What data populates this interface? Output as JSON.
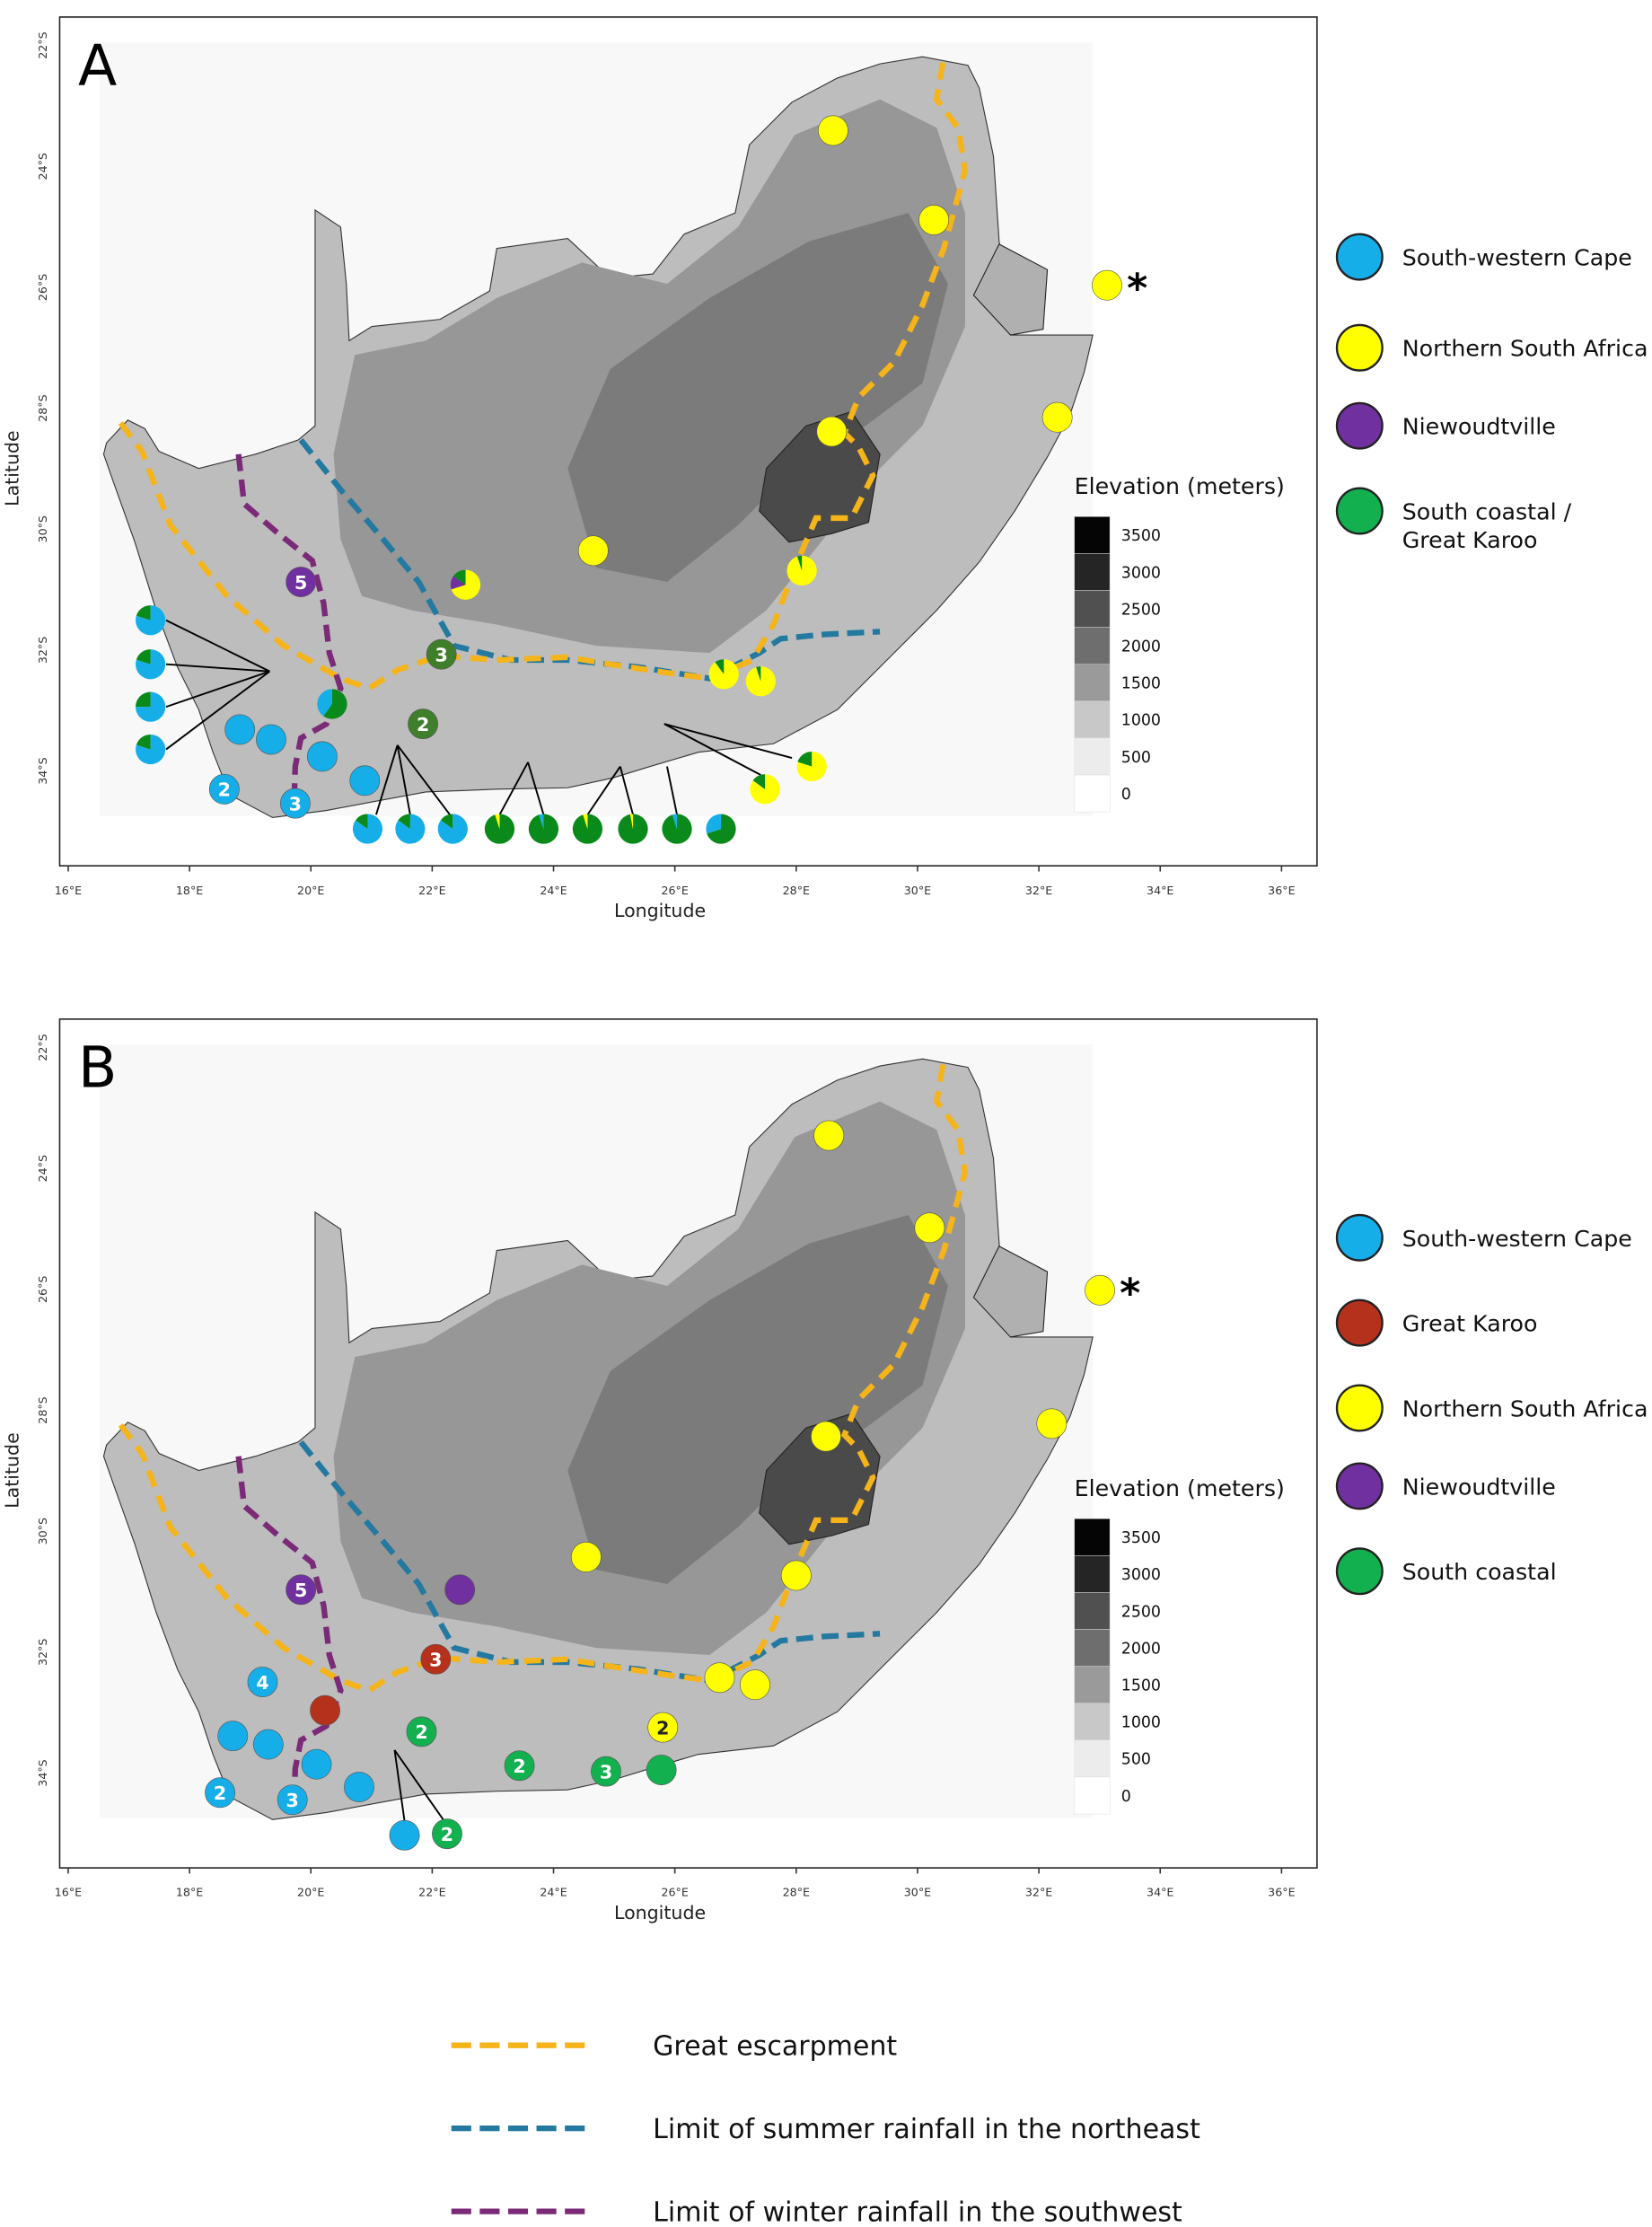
{
  "colors": {
    "swc": "#16aee9",
    "nsa": "#ffff00",
    "niew": "#7030a0",
    "sc": "#0a8a1a",
    "sc_dark": "#3f7f2b",
    "gk": "#b5311b",
    "sc_b": "#12b04f",
    "escarpment": "#f4b41a",
    "summer": "#2479a0",
    "winter": "#7b2a78"
  },
  "axes": {
    "x_ticks": [
      "16°E",
      "18°E",
      "20°E",
      "22°E",
      "24°E",
      "26°E",
      "28°E",
      "30°E",
      "32°E",
      "34°E",
      "36°E"
    ],
    "y_ticks": [
      "22°S",
      "24°S",
      "26°S",
      "28°S",
      "30°S",
      "32°S",
      "34°S"
    ],
    "xlabel": "Longitude",
    "ylabel": "Latitude"
  },
  "elevation_legend": {
    "title": "Elevation (meters)",
    "levels": [
      "3500",
      "3000",
      "2500",
      "2000",
      "1500",
      "1000",
      "500",
      "0"
    ]
  },
  "panels": [
    {
      "label": "A",
      "legend": [
        {
          "key": "swc",
          "label": "South-western Cape"
        },
        {
          "key": "nsa",
          "label": "Northern South Africa"
        },
        {
          "key": "niew",
          "label": "Niewoudtville"
        },
        {
          "key": "sc_b",
          "label": "South coastal /",
          "label2": "Great Karoo"
        }
      ],
      "asterisk": "*",
      "sites": [
        {
          "comp": {
            "nsa": 1
          }
        },
        {
          "comp": {
            "nsa": 1
          }
        },
        {
          "comp": {
            "nsa": 1
          }
        },
        {
          "comp": {
            "nsa": 1
          }
        },
        {
          "comp": {
            "nsa": 0.95,
            "sc": 0.05
          }
        },
        {
          "comp": {
            "nsa": 0.9,
            "sc": 0.1
          }
        },
        {
          "comp": {
            "nsa": 0.95,
            "sc": 0.05
          }
        },
        {
          "comp": {
            "nsa": 1
          }
        },
        {
          "comp": {
            "nsa": 1
          }
        },
        {
          "comp": {
            "nsa": 0.7,
            "niew": 0.15,
            "sc": 0.15
          }
        },
        {
          "comp": {
            "nsa": 0.8,
            "sc": 0.2
          }
        },
        {
          "comp": {
            "nsa": 0.85,
            "sc": 0.15
          }
        },
        {
          "comp": {
            "niew": 1
          },
          "n": "5"
        },
        {
          "comp": {
            "sc_dark": 1
          },
          "n": "3"
        },
        {
          "comp": {
            "sc_dark": 1
          },
          "n": "2"
        },
        {
          "comp": {
            "swc": 0.8,
            "sc": 0.2
          }
        },
        {
          "comp": {
            "swc": 0.8,
            "sc": 0.2
          }
        },
        {
          "comp": {
            "swc": 0.75,
            "sc": 0.25
          }
        },
        {
          "comp": {
            "swc": 0.8,
            "sc": 0.2
          }
        },
        {
          "comp": {
            "swc": 1
          }
        },
        {
          "comp": {
            "swc": 1
          }
        },
        {
          "comp": {
            "swc": 1
          }
        },
        {
          "comp": {
            "swc": 1
          }
        },
        {
          "comp": {
            "swc": 1
          },
          "n": "2"
        },
        {
          "comp": {
            "swc": 1
          },
          "n": "3"
        },
        {
          "comp": {
            "sc": 0.6,
            "swc": 0.4
          }
        },
        {
          "comp": {
            "swc": 0.85,
            "sc": 0.15
          }
        },
        {
          "comp": {
            "swc": 0.85,
            "sc": 0.15
          }
        },
        {
          "comp": {
            "swc": 0.85,
            "sc": 0.15
          }
        },
        {
          "comp": {
            "sc": 0.95,
            "nsa": 0.05
          }
        },
        {
          "comp": {
            "sc": 0.95,
            "swc": 0.05
          }
        },
        {
          "comp": {
            "sc": 0.95,
            "nsa": 0.05
          }
        },
        {
          "comp": {
            "sc": 0.97,
            "nsa": 0.03
          }
        },
        {
          "comp": {
            "sc": 0.95,
            "swc": 0.05
          }
        },
        {
          "comp": {
            "sc": 0.7,
            "swc": 0.3
          }
        }
      ]
    },
    {
      "label": "B",
      "legend": [
        {
          "key": "swc",
          "label": "South-western Cape"
        },
        {
          "key": "gk",
          "label": "Great Karoo"
        },
        {
          "key": "nsa",
          "label": "Northern South Africa"
        },
        {
          "key": "niew",
          "label": "Niewoudtville"
        },
        {
          "key": "sc_b",
          "label": "South coastal"
        }
      ],
      "asterisk": "*",
      "sites": [
        {
          "comp": {
            "nsa": 1
          }
        },
        {
          "comp": {
            "nsa": 1
          }
        },
        {
          "comp": {
            "nsa": 1
          }
        },
        {
          "comp": {
            "nsa": 1
          }
        },
        {
          "comp": {
            "nsa": 1
          }
        },
        {
          "comp": {
            "nsa": 1
          }
        },
        {
          "comp": {
            "nsa": 1
          }
        },
        {
          "comp": {
            "nsa": 1
          }
        },
        {
          "comp": {
            "nsa": 1
          }
        },
        {
          "comp": {
            "nsa": 1
          },
          "n": "2"
        },
        {
          "comp": {
            "niew": 1
          }
        },
        {
          "comp": {
            "niew": 1
          },
          "n": "5"
        },
        {
          "comp": {
            "gk": 1
          },
          "n": "3"
        },
        {
          "comp": {
            "gk": 1
          }
        },
        {
          "comp": {
            "swc": 1
          },
          "n": "4"
        },
        {
          "comp": {
            "swc": 1
          }
        },
        {
          "comp": {
            "swc": 1
          }
        },
        {
          "comp": {
            "swc": 1
          }
        },
        {
          "comp": {
            "swc": 1
          }
        },
        {
          "comp": {
            "swc": 1
          },
          "n": "2"
        },
        {
          "comp": {
            "swc": 1
          },
          "n": "3"
        },
        {
          "comp": {
            "swc": 1
          }
        },
        {
          "comp": {
            "sc_b": 1
          },
          "n": "2"
        },
        {
          "comp": {
            "sc_b": 1
          },
          "n": "2"
        },
        {
          "comp": {
            "sc_b": 1
          },
          "n": "3"
        },
        {
          "comp": {
            "sc_b": 1
          }
        },
        {
          "comp": {
            "sc_b": 1
          },
          "n": "2"
        }
      ]
    }
  ],
  "line_legend": [
    {
      "key": "escarpment",
      "label": "Great escarpment"
    },
    {
      "key": "summer",
      "label": "Limit of summer rainfall in the northeast"
    },
    {
      "key": "winter",
      "label": "Limit of winter rainfall in the southwest"
    }
  ]
}
